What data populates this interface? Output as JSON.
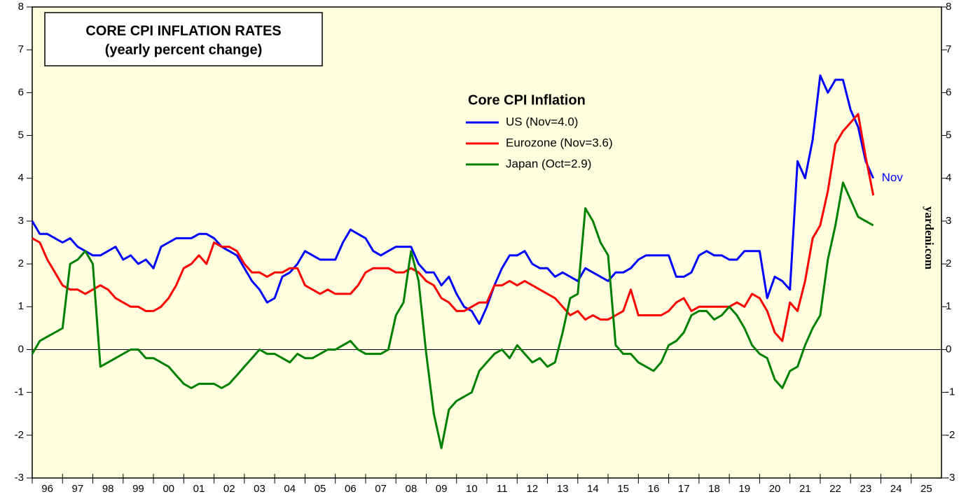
{
  "chart_data": {
    "type": "line",
    "title": "CORE CPI INFLATION RATES",
    "subtitle": "(yearly percent change)",
    "legend_title": "Core CPI Inflation",
    "annotation": "Nov",
    "source": "yardeni.com",
    "background": "#ffffe0",
    "x": [
      1996,
      1996.25,
      1996.5,
      1996.75,
      1997,
      1997.25,
      1997.5,
      1997.75,
      1998,
      1998.25,
      1998.5,
      1998.75,
      1999,
      1999.25,
      1999.5,
      1999.75,
      2000,
      2000.25,
      2000.5,
      2000.75,
      2001,
      2001.25,
      2001.5,
      2001.75,
      2002,
      2002.25,
      2002.5,
      2002.75,
      2003,
      2003.25,
      2003.5,
      2003.75,
      2004,
      2004.25,
      2004.5,
      2004.75,
      2005,
      2005.25,
      2005.5,
      2005.75,
      2006,
      2006.25,
      2006.5,
      2006.75,
      2007,
      2007.25,
      2007.5,
      2007.75,
      2008,
      2008.25,
      2008.5,
      2008.75,
      2009,
      2009.25,
      2009.5,
      2009.75,
      2010,
      2010.25,
      2010.5,
      2010.75,
      2011,
      2011.25,
      2011.5,
      2011.75,
      2012,
      2012.25,
      2012.5,
      2012.75,
      2013,
      2013.25,
      2013.5,
      2013.75,
      2014,
      2014.25,
      2014.5,
      2014.75,
      2015,
      2015.25,
      2015.5,
      2015.75,
      2016,
      2016.25,
      2016.5,
      2016.75,
      2017,
      2017.25,
      2017.5,
      2017.75,
      2018,
      2018.25,
      2018.5,
      2018.75,
      2019,
      2019.25,
      2019.5,
      2019.75,
      2020,
      2020.25,
      2020.5,
      2020.75,
      2021,
      2021.25,
      2021.5,
      2021.75,
      2022,
      2022.25,
      2022.5,
      2022.75,
      2023,
      2023.25,
      2023.5,
      2023.75
    ],
    "series": [
      {
        "name": "US (Nov=4.0)",
        "color": "#0000ff",
        "values": [
          3.0,
          2.7,
          2.7,
          2.6,
          2.5,
          2.6,
          2.4,
          2.3,
          2.2,
          2.2,
          2.3,
          2.4,
          2.1,
          2.2,
          2.0,
          2.1,
          1.9,
          2.4,
          2.5,
          2.6,
          2.6,
          2.6,
          2.7,
          2.7,
          2.6,
          2.4,
          2.3,
          2.2,
          1.9,
          1.6,
          1.4,
          1.1,
          1.2,
          1.7,
          1.8,
          2.0,
          2.3,
          2.2,
          2.1,
          2.1,
          2.1,
          2.5,
          2.8,
          2.7,
          2.6,
          2.3,
          2.2,
          2.3,
          2.4,
          2.4,
          2.4,
          2.0,
          1.8,
          1.8,
          1.5,
          1.7,
          1.3,
          1.0,
          0.9,
          0.6,
          1.0,
          1.5,
          1.9,
          2.2,
          2.2,
          2.3,
          2.0,
          1.9,
          1.9,
          1.7,
          1.8,
          1.7,
          1.6,
          1.9,
          1.8,
          1.7,
          1.6,
          1.8,
          1.8,
          1.9,
          2.1,
          2.2,
          2.2,
          2.2,
          2.2,
          1.7,
          1.7,
          1.8,
          2.2,
          2.3,
          2.2,
          2.2,
          2.1,
          2.1,
          2.3,
          2.3,
          2.3,
          1.2,
          1.7,
          1.6,
          1.4,
          4.4,
          4.0,
          4.9,
          6.4,
          6.0,
          6.3,
          6.3,
          5.6,
          5.2,
          4.4,
          4.0
        ]
      },
      {
        "name": "Eurozone (Nov=3.6)",
        "color": "#ff0000",
        "values": [
          2.6,
          2.5,
          2.1,
          1.8,
          1.5,
          1.4,
          1.4,
          1.3,
          1.4,
          1.5,
          1.4,
          1.2,
          1.1,
          1.0,
          1.0,
          0.9,
          0.9,
          1.0,
          1.2,
          1.5,
          1.9,
          2.0,
          2.2,
          2.0,
          2.5,
          2.4,
          2.4,
          2.3,
          2.0,
          1.8,
          1.8,
          1.7,
          1.8,
          1.8,
          1.9,
          1.9,
          1.5,
          1.4,
          1.3,
          1.4,
          1.3,
          1.3,
          1.3,
          1.5,
          1.8,
          1.9,
          1.9,
          1.9,
          1.8,
          1.8,
          1.9,
          1.8,
          1.6,
          1.5,
          1.2,
          1.1,
          0.9,
          0.9,
          1.0,
          1.1,
          1.1,
          1.5,
          1.5,
          1.6,
          1.5,
          1.6,
          1.5,
          1.4,
          1.3,
          1.2,
          1.0,
          0.8,
          0.9,
          0.7,
          0.8,
          0.7,
          0.7,
          0.8,
          0.9,
          1.4,
          0.8,
          0.8,
          0.8,
          0.8,
          0.9,
          1.1,
          1.2,
          0.9,
          1.0,
          1.0,
          1.0,
          1.0,
          1.0,
          1.1,
          1.0,
          1.3,
          1.2,
          0.9,
          0.4,
          0.2,
          1.1,
          0.9,
          1.6,
          2.6,
          2.9,
          3.7,
          4.8,
          5.1,
          5.3,
          5.5,
          4.5,
          3.6
        ]
      },
      {
        "name": "Japan (Oct=2.9)",
        "color": "#008000",
        "values": [
          -0.1,
          0.2,
          0.3,
          0.4,
          0.5,
          2.0,
          2.1,
          2.3,
          2.0,
          -0.4,
          -0.3,
          -0.2,
          -0.1,
          0.0,
          0.0,
          -0.2,
          -0.2,
          -0.3,
          -0.4,
          -0.6,
          -0.8,
          -0.9,
          -0.8,
          -0.8,
          -0.8,
          -0.9,
          -0.8,
          -0.6,
          -0.4,
          -0.2,
          0.0,
          -0.1,
          -0.1,
          -0.2,
          -0.3,
          -0.1,
          -0.2,
          -0.2,
          -0.1,
          0.0,
          0.0,
          0.1,
          0.2,
          0.0,
          -0.1,
          -0.1,
          -0.1,
          0.0,
          0.8,
          1.1,
          2.3,
          1.6,
          -0.1,
          -1.5,
          -2.3,
          -1.4,
          -1.2,
          -1.1,
          -1.0,
          -0.5,
          -0.3,
          -0.1,
          0.0,
          -0.2,
          0.1,
          -0.1,
          -0.3,
          -0.2,
          -0.4,
          -0.3,
          0.4,
          1.2,
          1.3,
          3.3,
          3.0,
          2.5,
          2.2,
          0.1,
          -0.1,
          -0.1,
          -0.3,
          -0.4,
          -0.5,
          -0.3,
          0.1,
          0.2,
          0.4,
          0.8,
          0.9,
          0.9,
          0.7,
          0.8,
          1.0,
          0.8,
          0.5,
          0.1,
          -0.1,
          -0.2,
          -0.7,
          -0.9,
          -0.5,
          -0.4,
          0.1,
          0.5,
          0.8,
          2.1,
          2.9,
          3.9,
          3.5,
          3.1,
          3.0,
          2.9
        ]
      }
    ],
    "xlim": [
      1996,
      2026
    ],
    "xticks": [
      {
        "value": 1996,
        "label": "96"
      },
      {
        "value": 1997,
        "label": "97"
      },
      {
        "value": 1998,
        "label": "98"
      },
      {
        "value": 1999,
        "label": "99"
      },
      {
        "value": 2000,
        "label": "00"
      },
      {
        "value": 2001,
        "label": "01"
      },
      {
        "value": 2002,
        "label": "02"
      },
      {
        "value": 2003,
        "label": "03"
      },
      {
        "value": 2004,
        "label": "04"
      },
      {
        "value": 2005,
        "label": "05"
      },
      {
        "value": 2006,
        "label": "06"
      },
      {
        "value": 2007,
        "label": "07"
      },
      {
        "value": 2008,
        "label": "08"
      },
      {
        "value": 2009,
        "label": "09"
      },
      {
        "value": 2010,
        "label": "10"
      },
      {
        "value": 2011,
        "label": "11"
      },
      {
        "value": 2012,
        "label": "12"
      },
      {
        "value": 2013,
        "label": "13"
      },
      {
        "value": 2014,
        "label": "14"
      },
      {
        "value": 2015,
        "label": "15"
      },
      {
        "value": 2016,
        "label": "16"
      },
      {
        "value": 2017,
        "label": "17"
      },
      {
        "value": 2018,
        "label": "18"
      },
      {
        "value": 2019,
        "label": "19"
      },
      {
        "value": 2020,
        "label": "20"
      },
      {
        "value": 2021,
        "label": "21"
      },
      {
        "value": 2022,
        "label": "22"
      },
      {
        "value": 2023,
        "label": "23"
      },
      {
        "value": 2024,
        "label": "24"
      },
      {
        "value": 2025,
        "label": "25"
      }
    ],
    "ylim": [
      -3,
      8
    ],
    "yticks": [
      -3,
      -2,
      -1,
      0,
      1,
      2,
      3,
      4,
      5,
      6,
      7,
      8
    ],
    "y2lim": [
      -3,
      8
    ],
    "y2ticks": [
      -3,
      -2,
      -1,
      0,
      1,
      2,
      3,
      4,
      5,
      6,
      7,
      8
    ]
  }
}
